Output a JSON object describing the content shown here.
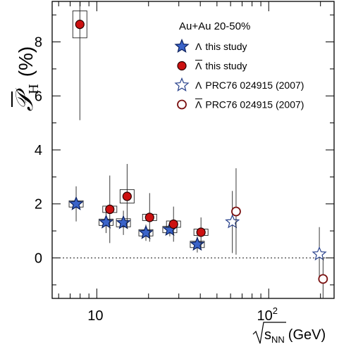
{
  "chart_data": {
    "type": "scatter",
    "title": "Au+Au 20-50%",
    "xlabel": "√s_NN (GeV)",
    "ylabel": "P̄_H (%)",
    "ylabel_main": "𝒫",
    "ylabel_sub": "H",
    "ylabel_unit": "(%)",
    "xlabel_root": "s",
    "xlabel_sub": "NN",
    "xlabel_unit": "(GeV)",
    "x_scale": "log",
    "xlim": [
      5.5,
      240
    ],
    "ylim": [
      -1.5,
      9.5
    ],
    "x_ticks": [
      {
        "value": 10,
        "label": "10"
      },
      {
        "value": 100,
        "label": "10",
        "sup": "2"
      }
    ],
    "y_ticks": [
      {
        "value": 0,
        "label": "0"
      },
      {
        "value": 2,
        "label": "2"
      },
      {
        "value": 4,
        "label": "4"
      },
      {
        "value": 6,
        "label": "6"
      },
      {
        "value": 8,
        "label": "8"
      }
    ],
    "reference_line": 0,
    "grid": false,
    "legend_position": "top-right",
    "series": [
      {
        "name": "Λ this study",
        "prefix": "Λ",
        "suffix": "this study",
        "overline": false,
        "marker": "star-filled",
        "color": "#3a63c9",
        "edge": "#0a1f5c",
        "points": [
          {
            "x": 7.7,
            "y": 2.0,
            "err": 0.65,
            "sys": 0.1
          },
          {
            "x": 11.5,
            "y": 1.32,
            "err": 0.4,
            "sys": 0.1
          },
          {
            "x": 14.5,
            "y": 1.3,
            "err": 0.45,
            "sys": 0.15
          },
          {
            "x": 19.6,
            "y": 0.93,
            "err": 0.3,
            "sys": 0.1
          },
          {
            "x": 27,
            "y": 1.05,
            "err": 0.25,
            "sys": 0.1
          },
          {
            "x": 39,
            "y": 0.5,
            "err": 0.3,
            "sys": 0.1
          }
        ]
      },
      {
        "name": "Λ̄ this study",
        "prefix": "Λ",
        "suffix": "this study",
        "overline": true,
        "marker": "circle-filled",
        "color": "#cc1111",
        "edge": "#2a0000",
        "points": [
          {
            "x": 7.7,
            "y": 8.65,
            "err": 3.55,
            "sys": 0.5
          },
          {
            "x": 11.5,
            "y": 1.8,
            "err": 1.25,
            "sys": 0.1
          },
          {
            "x": 14.5,
            "y": 2.28,
            "err": 1.2,
            "sys": 0.25
          },
          {
            "x": 19.6,
            "y": 1.5,
            "err": 0.9,
            "sys": 0.1
          },
          {
            "x": 27,
            "y": 1.25,
            "err": 0.65,
            "sys": 0.1
          },
          {
            "x": 39,
            "y": 0.95,
            "err": 0.55,
            "sys": 0.1
          }
        ]
      },
      {
        "name": "Λ PRC76 024915 (2007)",
        "prefix": "Λ",
        "suffix": "PRC76 024915 (2007)",
        "overline": false,
        "marker": "star-open",
        "color": "#ffffff",
        "edge": "#27408b",
        "points": [
          {
            "x": 62.4,
            "y": 1.33,
            "err": 1.15
          },
          {
            "x": 200,
            "y": 0.14,
            "err": 1.0
          }
        ]
      },
      {
        "name": "Λ̄ PRC76 024915 (2007)",
        "prefix": "Λ",
        "suffix": "PRC76 024915 (2007)",
        "overline": true,
        "marker": "circle-open",
        "color": "#ffffff",
        "edge": "#7a1010",
        "points": [
          {
            "x": 62.4,
            "y": 1.72,
            "err": 1.6
          },
          {
            "x": 200,
            "y": -0.78,
            "err": 0.8
          }
        ]
      }
    ]
  }
}
